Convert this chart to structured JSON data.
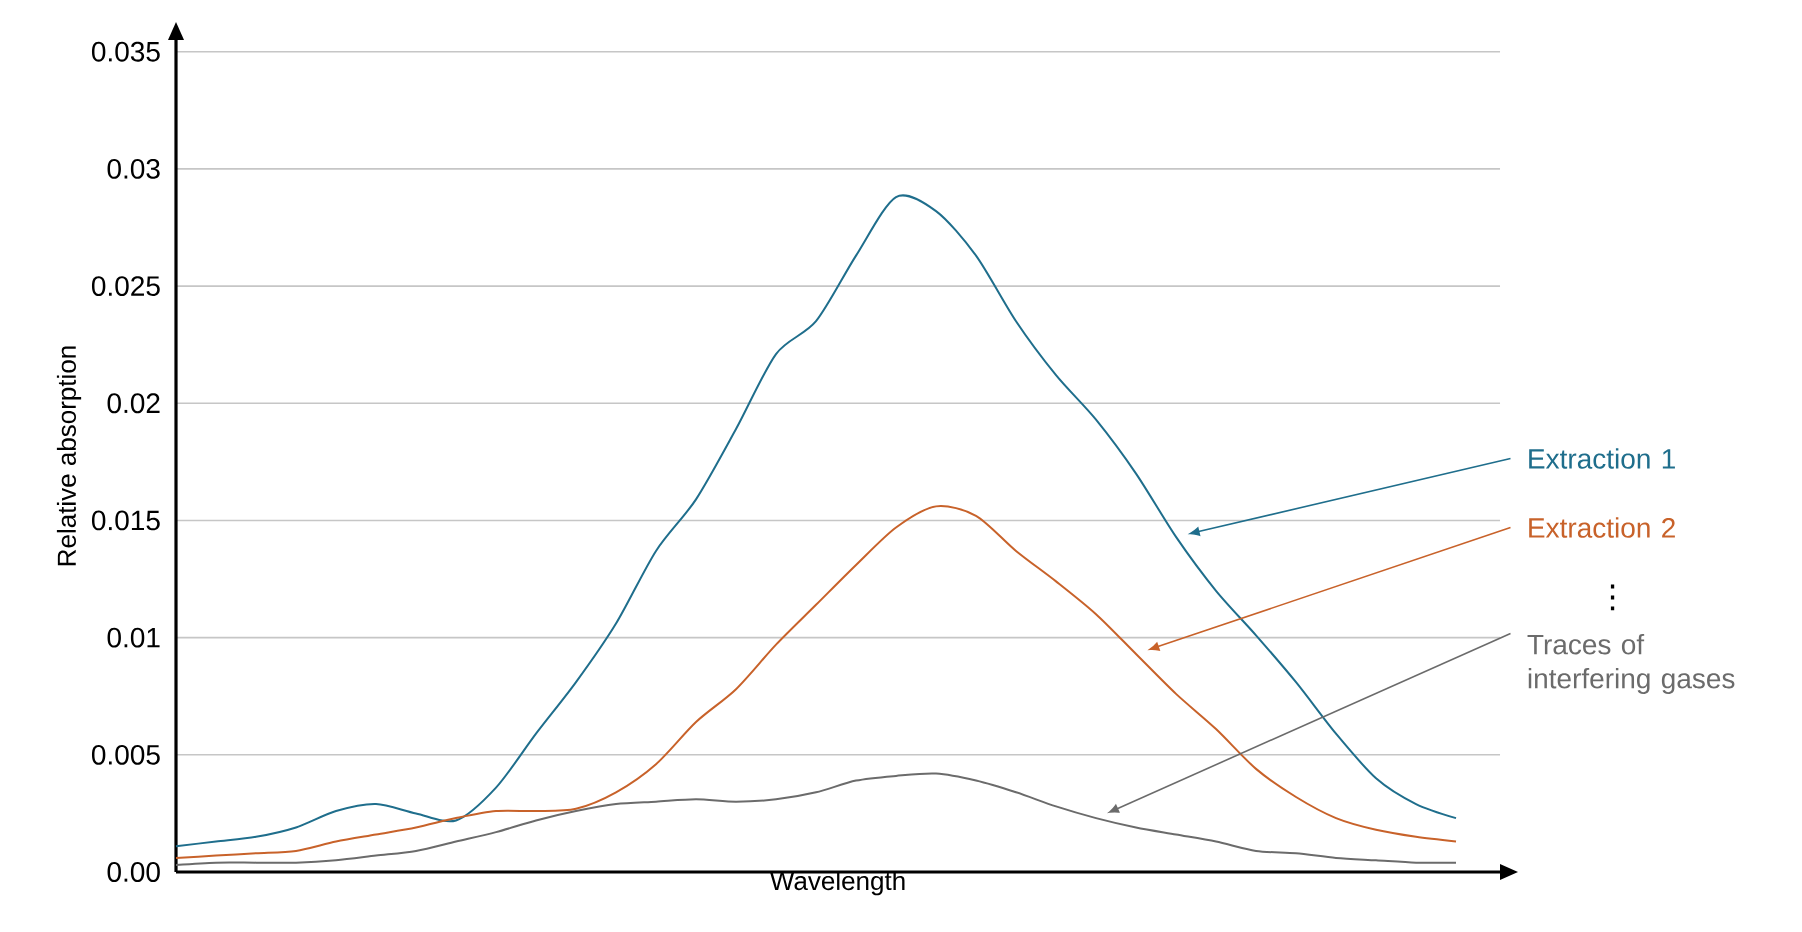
{
  "chart_data": {
    "type": "line",
    "xlabel": "Wavelength",
    "ylabel": "Relative absorption",
    "categories": [
      null,
      null,
      null,
      null,
      null,
      null,
      null,
      null,
      null,
      null,
      null,
      null,
      null,
      null,
      null,
      null,
      null,
      null,
      null,
      null,
      null,
      null,
      null,
      null,
      null,
      null,
      null,
      null,
      null,
      null,
      null,
      null,
      null
    ],
    "series": [
      {
        "name": "Extraction 1",
        "color": "#1f6e8c",
        "values": [
          0.0011,
          0.0013,
          0.0015,
          0.0019,
          0.0026,
          0.0029,
          0.0025,
          0.0022,
          0.0036,
          0.0059,
          0.0081,
          0.0106,
          0.0137,
          0.0159,
          0.0189,
          0.0221,
          0.0235,
          0.0263,
          0.0288,
          0.0282,
          0.0263,
          0.0235,
          0.0212,
          0.0193,
          0.017,
          0.0143,
          0.012,
          0.0101,
          0.0081,
          0.0059,
          0.004,
          0.0029,
          0.0023
        ]
      },
      {
        "name": "Extraction 2",
        "color": "#c8622a",
        "values": [
          0.0006,
          0.0007,
          0.0008,
          0.0009,
          0.0013,
          0.0016,
          0.0019,
          0.0023,
          0.0026,
          0.0026,
          0.0027,
          0.0034,
          0.0046,
          0.0064,
          0.0078,
          0.0097,
          0.0114,
          0.0131,
          0.0147,
          0.0156,
          0.0152,
          0.0137,
          0.0124,
          0.011,
          0.0093,
          0.0076,
          0.0061,
          0.0044,
          0.0032,
          0.0023,
          0.0018,
          0.0015,
          0.0013
        ]
      },
      {
        "name": "Traces of interfering gases",
        "color": "#6b6b6b",
        "values": [
          0.0003,
          0.0004,
          0.0004,
          0.0004,
          0.0005,
          0.0007,
          0.0009,
          0.0013,
          0.0017,
          0.0022,
          0.0026,
          0.0029,
          0.003,
          0.0031,
          0.003,
          0.0031,
          0.0034,
          0.0039,
          0.0041,
          0.0042,
          0.0039,
          0.0034,
          0.0028,
          0.0023,
          0.0019,
          0.0016,
          0.0013,
          0.0009,
          0.0008,
          0.0006,
          0.0005,
          0.0004,
          0.0004
        ]
      }
    ],
    "ylim": [
      0,
      0.0355
    ],
    "yticks": [
      {
        "value": 0,
        "label": "0.00"
      },
      0.005,
      0.01,
      0.015,
      0.02,
      0.025,
      0.03,
      0.035
    ],
    "grid": "y",
    "marker": "none",
    "line_style": "solid",
    "annotations": [
      "⋮"
    ]
  }
}
